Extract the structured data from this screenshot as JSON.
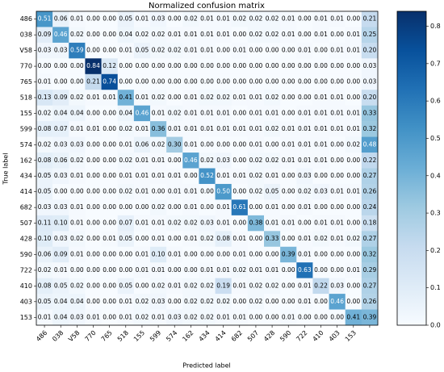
{
  "chart_data": {
    "type": "heatmap",
    "title": "Normalized confusion matrix",
    "xlabel": "Predicted label",
    "ylabel": "True label",
    "x": [
      "486",
      "038",
      "V58",
      "770",
      "765",
      "518",
      "155",
      "599",
      "574",
      "162",
      "434",
      "414",
      "682",
      "507",
      "428",
      "590",
      "722",
      "410",
      "403",
      "153",
      null
    ],
    "y": [
      "486",
      "038",
      "V58",
      "770",
      "765",
      "518",
      "155",
      "599",
      "574",
      "162",
      "434",
      "414",
      "682",
      "507",
      "428",
      "590",
      "722",
      "410",
      "403",
      "153"
    ],
    "colormap": [
      "#f7fbff",
      "#deebf7",
      "#c6dbef",
      "#9ecae1",
      "#6baed6",
      "#4292c6",
      "#2171b5",
      "#08519c",
      "#08306b"
    ],
    "clim": [
      0,
      0.84
    ],
    "cticks": [
      {
        "value": 0,
        "label": "0.0"
      },
      0.1,
      0.2,
      0.3,
      0.4,
      0.5,
      0.6,
      0.7,
      0.8
    ],
    "z": [
      [
        0.51,
        0.06,
        0.01,
        0,
        0,
        0.05,
        0.01,
        0.03,
        0,
        0.02,
        0.01,
        0.01,
        0.02,
        0.02,
        0.02,
        0.01,
        0,
        0.01,
        0.01,
        0,
        0.21
      ],
      [
        0.09,
        0.46,
        0.02,
        0,
        0,
        0.04,
        0.02,
        0.02,
        0.01,
        0.01,
        0.01,
        0.01,
        0,
        0.02,
        0.02,
        0.01,
        0,
        0.01,
        0,
        0.01,
        0.25
      ],
      [
        0.03,
        0.03,
        0.59,
        0,
        0,
        0.01,
        0.05,
        0.02,
        0.02,
        0.01,
        0.01,
        0,
        0.01,
        0,
        0,
        0,
        0.01,
        0,
        0.01,
        0.01,
        0.2
      ],
      [
        0,
        0,
        0,
        0.84,
        0.12,
        0,
        0,
        0,
        0,
        0,
        0,
        0,
        0,
        0,
        0,
        0,
        0,
        0,
        0,
        0,
        0.03
      ],
      [
        0.01,
        0,
        0,
        0.21,
        0.74,
        0,
        0,
        0,
        0,
        0,
        0,
        0,
        0,
        0,
        0,
        0,
        0,
        0,
        0,
        0,
        0.03
      ],
      [
        0.13,
        0.09,
        0.02,
        0.01,
        0.01,
        0.41,
        0.01,
        0.02,
        0,
        0.01,
        0.02,
        0.02,
        0.01,
        0.01,
        0.02,
        0,
        0,
        0.01,
        0.01,
        0,
        0.2
      ],
      [
        0.02,
        0.04,
        0.04,
        0,
        0,
        0.04,
        0.46,
        0.01,
        0.02,
        0.01,
        0.01,
        0.01,
        0,
        0.01,
        0.01,
        0,
        0.01,
        0.01,
        0.01,
        0.01,
        0.33
      ],
      [
        0.08,
        0.07,
        0.01,
        0.01,
        0,
        0.02,
        0.01,
        0.36,
        0.01,
        0.01,
        0.01,
        0.01,
        0.01,
        0.01,
        0.02,
        0.01,
        0.01,
        0.01,
        0.01,
        0.01,
        0.32
      ],
      [
        0.02,
        0.03,
        0.03,
        0,
        0,
        0.01,
        0.06,
        0.02,
        0.3,
        0.01,
        0,
        0,
        0,
        0.01,
        0,
        0.01,
        0.01,
        0.01,
        0,
        0.02,
        0.48
      ],
      [
        0.08,
        0.06,
        0.02,
        0,
        0,
        0.02,
        0.01,
        0.01,
        0,
        0.46,
        0.02,
        0.03,
        0,
        0.02,
        0.02,
        0.01,
        0.01,
        0.01,
        0,
        0,
        0.22
      ],
      [
        0.05,
        0.03,
        0.01,
        0,
        0,
        0.01,
        0.01,
        0.01,
        0.01,
        0,
        0.52,
        0.01,
        0.01,
        0.02,
        0.01,
        0,
        0.03,
        0,
        0,
        0,
        0.27
      ],
      [
        0.05,
        0,
        0,
        0,
        0,
        0.02,
        0.01,
        0,
        0.01,
        0.01,
        0,
        0.5,
        0,
        0.02,
        0.05,
        0,
        0.02,
        0.03,
        0.01,
        0.01,
        0.26
      ],
      [
        0.03,
        0.03,
        0.01,
        0,
        0,
        0,
        0,
        0.02,
        0,
        0.01,
        0,
        0.01,
        0.61,
        0,
        0.01,
        0,
        0.01,
        0,
        0,
        0,
        0.24
      ],
      [
        0.11,
        0.1,
        0.01,
        0,
        0,
        0.07,
        0.01,
        0.01,
        0.02,
        0.02,
        0.03,
        0.01,
        0,
        0.38,
        0.01,
        0.01,
        0,
        0.01,
        0.01,
        0,
        0.18
      ],
      [
        0.1,
        0.03,
        0.02,
        0,
        0.01,
        0.05,
        0,
        0.01,
        0,
        0.01,
        0.02,
        0.08,
        0.01,
        0,
        0.33,
        0,
        0.01,
        0.02,
        0.01,
        0.02,
        0.27
      ],
      [
        0.06,
        0.09,
        0.01,
        0,
        0,
        0,
        0.01,
        0.1,
        0.01,
        0,
        0,
        0,
        0.01,
        0,
        0,
        0.39,
        0.01,
        0,
        0,
        0,
        0.32
      ],
      [
        0.02,
        0.01,
        0,
        0,
        0,
        0,
        0.01,
        0.01,
        0,
        0,
        0.01,
        0.01,
        0.02,
        0.01,
        0.01,
        0,
        0.63,
        0,
        0,
        0.01,
        0.29
      ],
      [
        0.08,
        0.05,
        0.02,
        0,
        0,
        0.05,
        0,
        0.02,
        0.01,
        0.02,
        0.02,
        0.19,
        0.01,
        0.02,
        0.02,
        0,
        0.01,
        0.22,
        0.03,
        0,
        0.27
      ],
      [
        0.05,
        0.04,
        0.04,
        0,
        0,
        0.01,
        0.02,
        0.03,
        0,
        0.02,
        0.02,
        0.02,
        0,
        0.02,
        0,
        0,
        0.01,
        0,
        0.46,
        0,
        0.26
      ],
      [
        0.01,
        0.04,
        0.03,
        0.01,
        0,
        0.01,
        0.02,
        0.01,
        0.03,
        0.02,
        0.02,
        0.01,
        0.01,
        0,
        0,
        0.01,
        0,
        0,
        0,
        0.41,
        0.39
      ]
    ],
    "value_labels": [
      [
        "0.51",
        "0.06",
        "0.01",
        "0.00",
        "0.00",
        "0.05",
        "0.01",
        "0.03",
        "0.00",
        "0.02",
        "0.01",
        "0.01",
        "0.02",
        "0.02",
        "0.02",
        "0.01",
        "0.00",
        "0.01",
        "0.01",
        "0.00",
        "0.21"
      ],
      [
        "0.09",
        "0.46",
        "0.02",
        "0.00",
        "0.00",
        "0.04",
        "0.02",
        "0.02",
        "0.01",
        "0.01",
        "0.01",
        "0.01",
        "0.00",
        "0.02",
        "0.02",
        "0.01",
        "0.00",
        "0.01",
        "0.00",
        "0.01",
        "0.25"
      ],
      [
        "0.03",
        "0.03",
        "0.59",
        "0.00",
        "0.00",
        "0.01",
        "0.05",
        "0.02",
        "0.02",
        "0.01",
        "0.01",
        "0.00",
        "0.01",
        "0.00",
        "0.00",
        "0.00",
        "0.01",
        "0.00",
        "0.01",
        "0.01",
        "0.20"
      ],
      [
        "0.00",
        "0.00",
        "0.00",
        "0.84",
        "0.12",
        "0.00",
        "0.00",
        "0.00",
        "0.00",
        "0.00",
        "0.00",
        "0.00",
        "0.00",
        "0.00",
        "0.00",
        "0.00",
        "0.00",
        "0.00",
        "0.00",
        "0.00",
        "0.03"
      ],
      [
        "0.01",
        "0.00",
        "0.00",
        "0.21",
        "0.74",
        "0.00",
        "0.00",
        "0.00",
        "0.00",
        "0.00",
        "0.00",
        "0.00",
        "0.00",
        "0.00",
        "0.00",
        "0.00",
        "0.00",
        "0.00",
        "0.00",
        "0.00",
        "0.03"
      ],
      [
        "0.13",
        "0.09",
        "0.02",
        "0.01",
        "0.01",
        "0.41",
        "0.01",
        "0.02",
        "0.00",
        "0.01",
        "0.02",
        "0.02",
        "0.01",
        "0.01",
        "0.02",
        "0.00",
        "0.00",
        "0.01",
        "0.01",
        "0.00",
        "0.20"
      ],
      [
        "0.02",
        "0.04",
        "0.04",
        "0.00",
        "0.00",
        "0.04",
        "0.46",
        "0.01",
        "0.02",
        "0.01",
        "0.01",
        "0.01",
        "0.00",
        "0.01",
        "0.01",
        "0.00",
        "0.01",
        "0.01",
        "0.01",
        "0.01",
        "0.33"
      ],
      [
        "0.08",
        "0.07",
        "0.01",
        "0.01",
        "0.00",
        "0.02",
        "0.01",
        "0.36",
        "0.01",
        "0.01",
        "0.01",
        "0.01",
        "0.01",
        "0.01",
        "0.02",
        "0.01",
        "0.01",
        "0.01",
        "0.01",
        "0.01",
        "0.32"
      ],
      [
        "0.02",
        "0.03",
        "0.03",
        "0.00",
        "0.00",
        "0.01",
        "0.06",
        "0.02",
        "0.30",
        "0.01",
        "0.00",
        "0.00",
        "0.00",
        "0.01",
        "0.00",
        "0.01",
        "0.01",
        "0.01",
        "0.00",
        "0.02",
        "0.48"
      ],
      [
        "0.08",
        "0.06",
        "0.02",
        "0.00",
        "0.00",
        "0.02",
        "0.01",
        "0.01",
        "0.00",
        "0.46",
        "0.02",
        "0.03",
        "0.00",
        "0.02",
        "0.02",
        "0.01",
        "0.01",
        "0.01",
        "0.00",
        "0.00",
        "0.22"
      ],
      [
        "0.05",
        "0.03",
        "0.01",
        "0.00",
        "0.00",
        "0.01",
        "0.01",
        "0.01",
        "0.01",
        "0.00",
        "0.52",
        "0.01",
        "0.01",
        "0.02",
        "0.01",
        "0.00",
        "0.03",
        "0.00",
        "0.00",
        "0.00",
        "0.27"
      ],
      [
        "0.05",
        "0.00",
        "0.00",
        "0.00",
        "0.00",
        "0.02",
        "0.01",
        "0.00",
        "0.01",
        "0.01",
        "0.00",
        "0.50",
        "0.00",
        "0.02",
        "0.05",
        "0.00",
        "0.02",
        "0.03",
        "0.01",
        "0.01",
        "0.26"
      ],
      [
        "0.03",
        "0.03",
        "0.01",
        "0.00",
        "0.00",
        "0.00",
        "0.00",
        "0.02",
        "0.00",
        "0.01",
        "0.00",
        "0.01",
        "0.61",
        "0.00",
        "0.01",
        "0.00",
        "0.01",
        "0.00",
        "0.00",
        "0.00",
        "0.24"
      ],
      [
        "0.11",
        "0.10",
        "0.01",
        "0.00",
        "0.00",
        "0.07",
        "0.01",
        "0.01",
        "0.02",
        "0.02",
        "0.03",
        "0.01",
        "0.00",
        "0.38",
        "0.01",
        "0.01",
        "0.00",
        "0.01",
        "0.01",
        "0.00",
        "0.18"
      ],
      [
        "0.10",
        "0.03",
        "0.02",
        "0.00",
        "0.01",
        "0.05",
        "0.00",
        "0.01",
        "0.00",
        "0.01",
        "0.02",
        "0.08",
        "0.01",
        "0.00",
        "0.33",
        "0.00",
        "0.01",
        "0.02",
        "0.01",
        "0.02",
        "0.27"
      ],
      [
        "0.06",
        "0.09",
        "0.01",
        "0.00",
        "0.00",
        "0.00",
        "0.01",
        "0.10",
        "0.01",
        "0.00",
        "0.00",
        "0.00",
        "0.01",
        "0.00",
        "0.00",
        "0.39",
        "0.01",
        "0.00",
        "0.00",
        "0.00",
        "0.32"
      ],
      [
        "0.02",
        "0.01",
        "0.00",
        "0.00",
        "0.00",
        "0.00",
        "0.01",
        "0.01",
        "0.00",
        "0.00",
        "0.01",
        "0.01",
        "0.02",
        "0.01",
        "0.01",
        "0.00",
        "0.63",
        "0.00",
        "0.00",
        "0.01",
        "0.29"
      ],
      [
        "0.08",
        "0.05",
        "0.02",
        "0.00",
        "0.00",
        "0.05",
        "0.00",
        "0.02",
        "0.01",
        "0.02",
        "0.02",
        "0.19",
        "0.01",
        "0.02",
        "0.02",
        "0.00",
        "0.01",
        "0.22",
        "0.03",
        "0.00",
        "0.27"
      ],
      [
        "0.05",
        "0.04",
        "0.04",
        "0.00",
        "0.00",
        "0.01",
        "0.02",
        "0.03",
        "0.00",
        "0.02",
        "0.02",
        "0.02",
        "0.00",
        "0.02",
        "0.00",
        "0.00",
        "0.01",
        "0.00",
        "0.46",
        "0.00",
        "0.26"
      ],
      [
        "0.01",
        "0.04",
        "0.03",
        "0.01",
        "0.00",
        "0.01",
        "0.02",
        "0.01",
        "0.03",
        "0.02",
        "0.02",
        "0.01",
        "0.01",
        "0.00",
        "0.00",
        "0.01",
        "0.00",
        "0.00",
        "0.00",
        "0.41",
        "0.39"
      ]
    ]
  }
}
